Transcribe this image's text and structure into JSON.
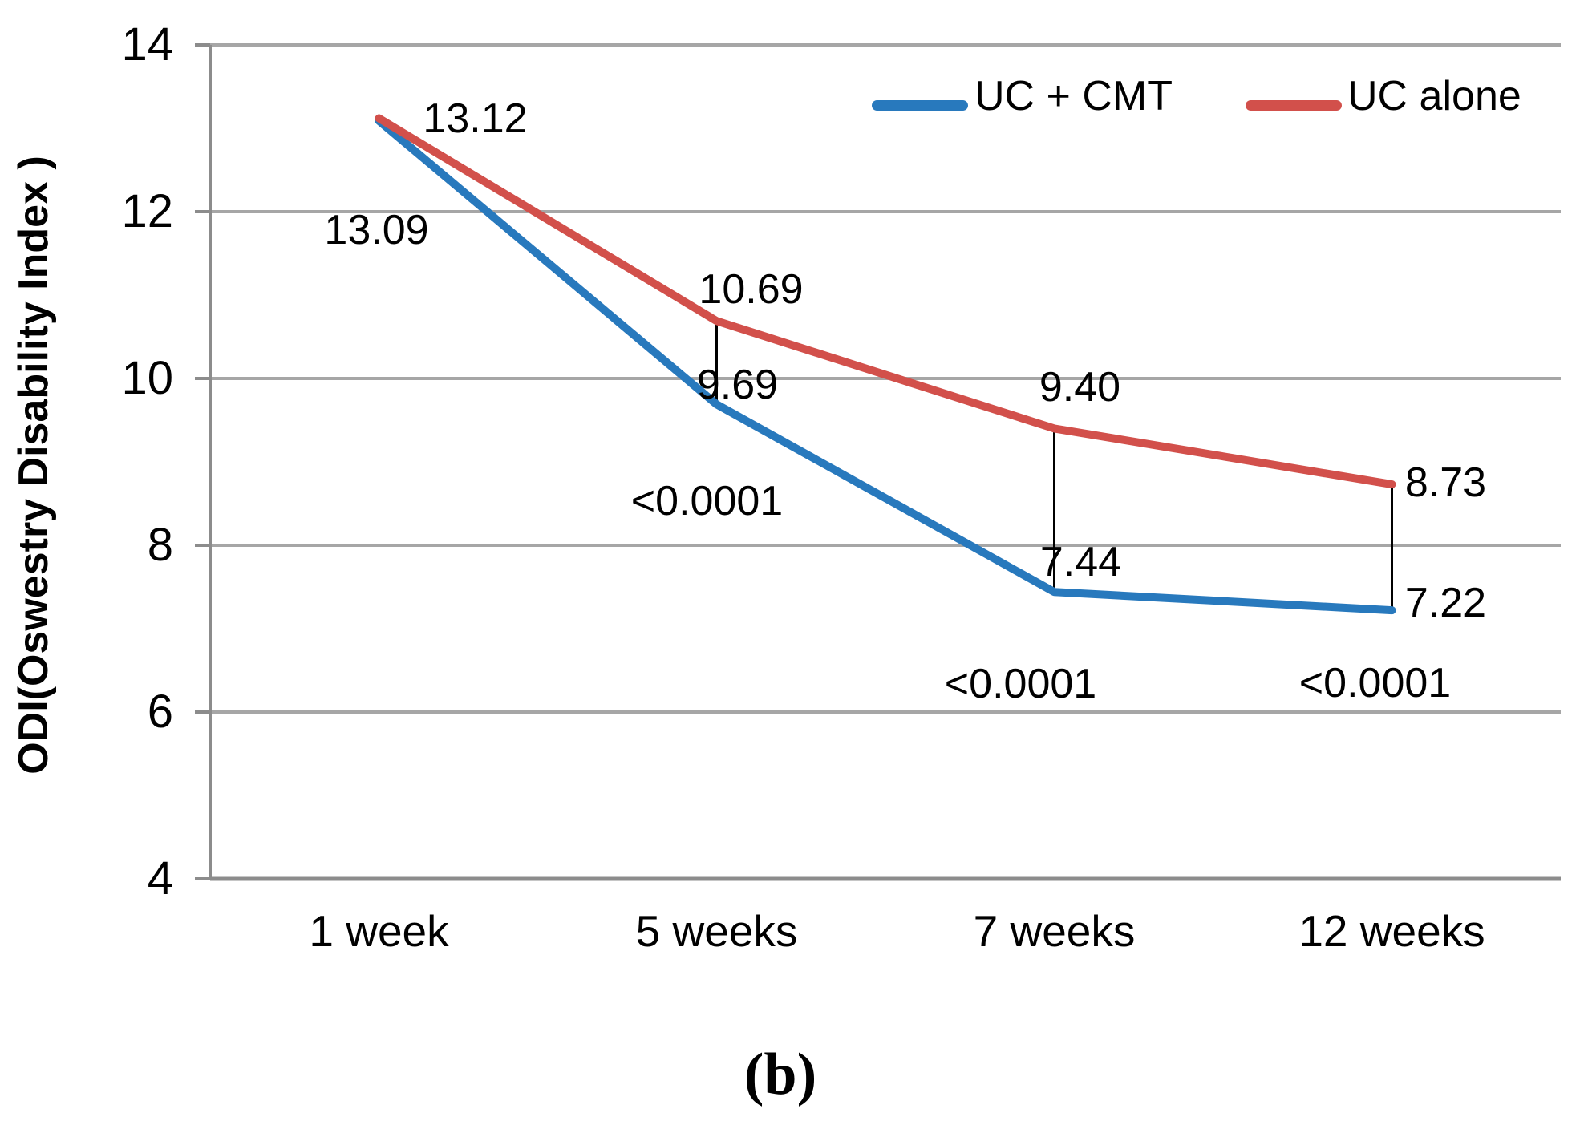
{
  "figure": {
    "caption": "(b)",
    "background": "#ffffff"
  },
  "chart_data": {
    "type": "line",
    "title": "",
    "xlabel": "",
    "ylabel": "ODI(Oswestry Disability Index )",
    "categories": [
      "1 week",
      "5 weeks",
      "7 weeks",
      "12 weeks"
    ],
    "ylim": [
      4,
      14
    ],
    "yticks": [
      14,
      12,
      10,
      8,
      6,
      4
    ],
    "grid": true,
    "legend_position": "top",
    "series": [
      {
        "name": "UC + CMT",
        "color": "#2879BD",
        "values": [
          13.09,
          9.69,
          7.44,
          7.22
        ],
        "labels": [
          "13.09",
          "9.69",
          "7.44",
          "7.22"
        ]
      },
      {
        "name": "UC alone",
        "color": "#D2504B",
        "values": [
          13.12,
          10.69,
          9.4,
          8.73
        ],
        "labels": [
          "13.12",
          "10.69",
          "9.40",
          "8.73"
        ]
      }
    ],
    "significance_annotations": [
      {
        "text": "<0.0001",
        "x_index": 1
      },
      {
        "text": "<0.0001",
        "x_index": 2
      },
      {
        "text": "<0.0001",
        "x_index": 3
      }
    ],
    "comparison_lines": [
      1,
      2,
      3
    ],
    "colors": {
      "gridline": "#A6A6A6",
      "axis": "#8C8C8C",
      "connector": "#000000",
      "text": "#000000"
    }
  }
}
